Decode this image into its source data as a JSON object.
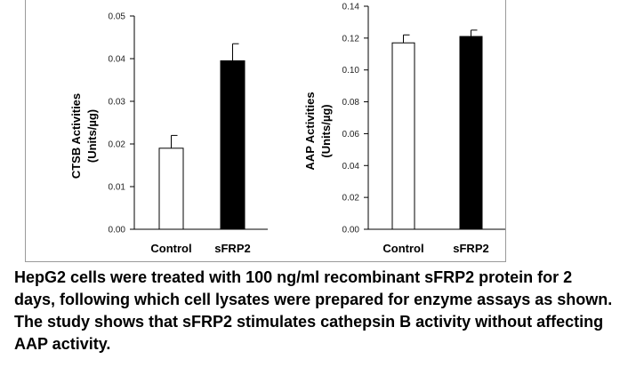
{
  "chart_data": [
    {
      "type": "bar",
      "ylabel_line1": "CTSB Activities",
      "ylabel_line2": "(Units/µg)",
      "categories": [
        "Control",
        "sFRP2"
      ],
      "values": [
        0.019,
        0.0395
      ],
      "errors": [
        0.003,
        0.004
      ],
      "bar_fills": [
        "#ffffff",
        "#000000"
      ],
      "ylim": [
        0,
        0.05
      ],
      "yticks": [
        "0.00",
        "0.01",
        "0.02",
        "0.03",
        "0.04",
        "0.05"
      ],
      "ytick_values": [
        0,
        0.01,
        0.02,
        0.03,
        0.04,
        0.05
      ]
    },
    {
      "type": "bar",
      "ylabel_line1": "AAP Activities",
      "ylabel_line2": "(Units/µg)",
      "categories": [
        "Control",
        "sFRP2"
      ],
      "values": [
        0.117,
        0.121
      ],
      "errors": [
        0.005,
        0.004
      ],
      "bar_fills": [
        "#ffffff",
        "#000000"
      ],
      "ylim": [
        0,
        0.14
      ],
      "yticks": [
        "0.00",
        "0.02",
        "0.04",
        "0.06",
        "0.08",
        "0.10",
        "0.12",
        "0.14"
      ],
      "ytick_values": [
        0,
        0.02,
        0.04,
        0.06,
        0.08,
        0.1,
        0.12,
        0.14
      ]
    }
  ],
  "caption": "HepG2 cells were treated with 100 ng/ml recombinant sFRP2 protein for 2 days, following which cell lysates were prepared for enzyme assays as shown. The study shows that sFRP2 stimulates cathepsin B activity without affecting AAP activity."
}
